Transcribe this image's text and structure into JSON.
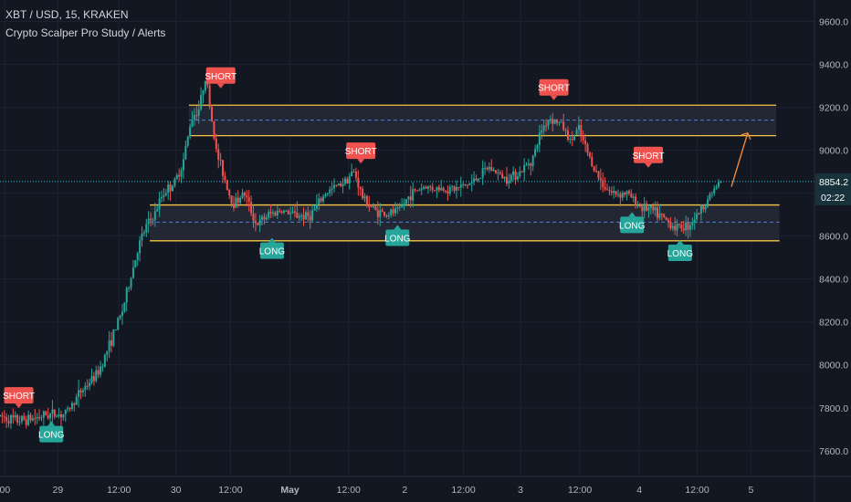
{
  "header": {
    "symbol_line": "XBT / USD, 15, KRAKEN",
    "study_line": "Crypto Scalper Pro Study / Alerts"
  },
  "colors": {
    "background": "#131722",
    "grid": "#1e2230",
    "axis_text": "#b2b5be",
    "bull": "#26a69a",
    "bear": "#ef5350",
    "zone_line": "#f5c542",
    "zone_fill": "#262a36",
    "zone_mid": "#4d7fd6",
    "price_line": "#26c6da",
    "arrow": "#f0883e",
    "short_badge": "#ef5350",
    "long_badge": "#26a69a"
  },
  "chart_data": {
    "type": "candlestick",
    "ylim": [
      7480,
      9700
    ],
    "y_ticks": [
      "9600.0",
      "9400.0",
      "9200.0",
      "9000.0",
      "8800.0",
      "8600.0",
      "8400.0",
      "8200.0",
      "8000.0",
      "7800.0",
      "7600.0"
    ],
    "y_tick_values": [
      9600,
      9400,
      9200,
      9000,
      8800,
      8600,
      8400,
      8200,
      8000,
      7800,
      7600
    ],
    "x_ticks": [
      "00",
      "29",
      "12:00",
      "30",
      "12:00",
      "May",
      "12:00",
      "2",
      "12:00",
      "3",
      "12:00",
      "4",
      "12:00",
      "5"
    ],
    "x_tick_pos": [
      0.006,
      0.071,
      0.146,
      0.216,
      0.283,
      0.356,
      0.428,
      0.497,
      0.569,
      0.639,
      0.712,
      0.785,
      0.856,
      0.922
    ],
    "current_price": "8854.2",
    "countdown": "02:22",
    "current_value": 8854.2,
    "resistance_zone": {
      "top": 9210,
      "mid": 9140,
      "bottom": 9068
    },
    "support_zone": {
      "top": 8745,
      "mid": 8665,
      "bottom": 8578
    },
    "price_path": [
      [
        0.0,
        7760
      ],
      [
        0.02,
        7740
      ],
      [
        0.04,
        7750
      ],
      [
        0.06,
        7770
      ],
      [
        0.08,
        7770
      ],
      [
        0.1,
        7880
      ],
      [
        0.12,
        7960
      ],
      [
        0.135,
        8100
      ],
      [
        0.15,
        8250
      ],
      [
        0.16,
        8400
      ],
      [
        0.17,
        8550
      ],
      [
        0.18,
        8650
      ],
      [
        0.19,
        8700
      ],
      [
        0.2,
        8800
      ],
      [
        0.215,
        8850
      ],
      [
        0.225,
        8950
      ],
      [
        0.235,
        9150
      ],
      [
        0.245,
        9200
      ],
      [
        0.252,
        9350
      ],
      [
        0.258,
        9200
      ],
      [
        0.265,
        9000
      ],
      [
        0.275,
        8880
      ],
      [
        0.285,
        8750
      ],
      [
        0.3,
        8800
      ],
      [
        0.315,
        8650
      ],
      [
        0.33,
        8700
      ],
      [
        0.345,
        8720
      ],
      [
        0.36,
        8700
      ],
      [
        0.38,
        8690
      ],
      [
        0.4,
        8800
      ],
      [
        0.42,
        8850
      ],
      [
        0.435,
        8900
      ],
      [
        0.445,
        8780
      ],
      [
        0.46,
        8720
      ],
      [
        0.475,
        8700
      ],
      [
        0.49,
        8720
      ],
      [
        0.505,
        8800
      ],
      [
        0.52,
        8830
      ],
      [
        0.54,
        8820
      ],
      [
        0.56,
        8820
      ],
      [
        0.58,
        8850
      ],
      [
        0.6,
        8920
      ],
      [
        0.62,
        8870
      ],
      [
        0.64,
        8900
      ],
      [
        0.655,
        8970
      ],
      [
        0.665,
        9100
      ],
      [
        0.675,
        9150
      ],
      [
        0.69,
        9120
      ],
      [
        0.7,
        9040
      ],
      [
        0.71,
        9100
      ],
      [
        0.72,
        9000
      ],
      [
        0.735,
        8870
      ],
      [
        0.75,
        8800
      ],
      [
        0.77,
        8800
      ],
      [
        0.785,
        8740
      ],
      [
        0.8,
        8720
      ],
      [
        0.815,
        8680
      ],
      [
        0.83,
        8640
      ],
      [
        0.845,
        8650
      ],
      [
        0.86,
        8720
      ],
      [
        0.875,
        8810
      ],
      [
        0.885,
        8854
      ]
    ],
    "signals": [
      {
        "label": "SHORT",
        "side": "short",
        "x": 0.023,
        "price": 7760
      },
      {
        "label": "LONG",
        "side": "long",
        "x": 0.063,
        "price": 7775
      },
      {
        "label": "SHORT",
        "side": "short",
        "x": 0.271,
        "price": 9250
      },
      {
        "label": "LONG",
        "side": "long",
        "x": 0.334,
        "price": 8630
      },
      {
        "label": "SHORT",
        "side": "short",
        "x": 0.443,
        "price": 8900
      },
      {
        "label": "LONG",
        "side": "long",
        "x": 0.488,
        "price": 8690
      },
      {
        "label": "SHORT",
        "side": "short",
        "x": 0.68,
        "price": 9195
      },
      {
        "label": "SHORT",
        "side": "short",
        "x": 0.796,
        "price": 8880
      },
      {
        "label": "LONG",
        "side": "long",
        "x": 0.776,
        "price": 8750
      },
      {
        "label": "LONG",
        "side": "long",
        "x": 0.835,
        "price": 8620
      }
    ]
  }
}
